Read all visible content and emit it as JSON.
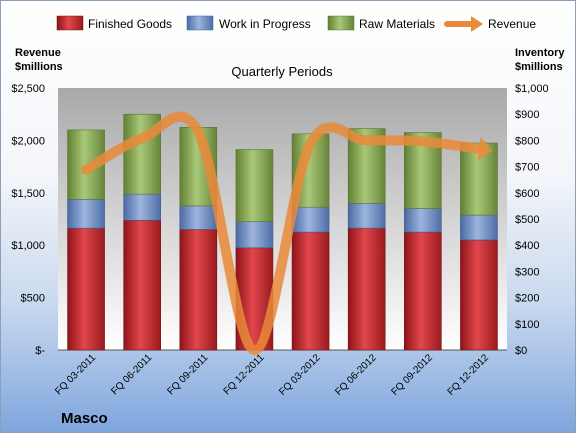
{
  "chart_data": {
    "type": "bar",
    "title": "Quarterly Periods",
    "company": "Masco",
    "left_axis_label": [
      "Revenue",
      "$millions"
    ],
    "right_axis_label": [
      "Inventory",
      "$millions"
    ],
    "categories": [
      "FQ 03-2011",
      "FQ 06-2011",
      "FQ 09-2011",
      "FQ 12-2011",
      "FQ 03-2012",
      "FQ 06-2012",
      "FQ 09-2012",
      "FQ 12-2012"
    ],
    "left_ticks": [
      "$2,500",
      "$2,000",
      "$1,500",
      "$1,000",
      "$500",
      "$-"
    ],
    "right_ticks": [
      "$1,000",
      "$900",
      "$800",
      "$700",
      "$600",
      "$500",
      "$400",
      "$300",
      "$200",
      "$100",
      "$0"
    ],
    "left_ylim": [
      0,
      2500
    ],
    "right_ylim": [
      0,
      1000
    ],
    "stacked": true,
    "series": [
      {
        "name": "Finished Goods",
        "axis": "right",
        "color": "#c0282d",
        "values": [
          465,
          495,
          460,
          390,
          450,
          465,
          450,
          420
        ]
      },
      {
        "name": "Work in Progress",
        "axis": "right",
        "color": "#6f8fc6",
        "values": [
          110,
          100,
          90,
          100,
          95,
          95,
          90,
          95
        ]
      },
      {
        "name": "Raw Materials",
        "axis": "right",
        "color": "#8dae56",
        "values": [
          265,
          305,
          300,
          275,
          280,
          285,
          290,
          275
        ]
      }
    ],
    "line_series": {
      "name": "Revenue",
      "axis": "left",
      "color": "#e9893a",
      "values": [
        1720,
        2020,
        2080,
        0,
        1970,
        2000,
        1990,
        1920
      ]
    },
    "legend_position": "top",
    "grid": false
  }
}
